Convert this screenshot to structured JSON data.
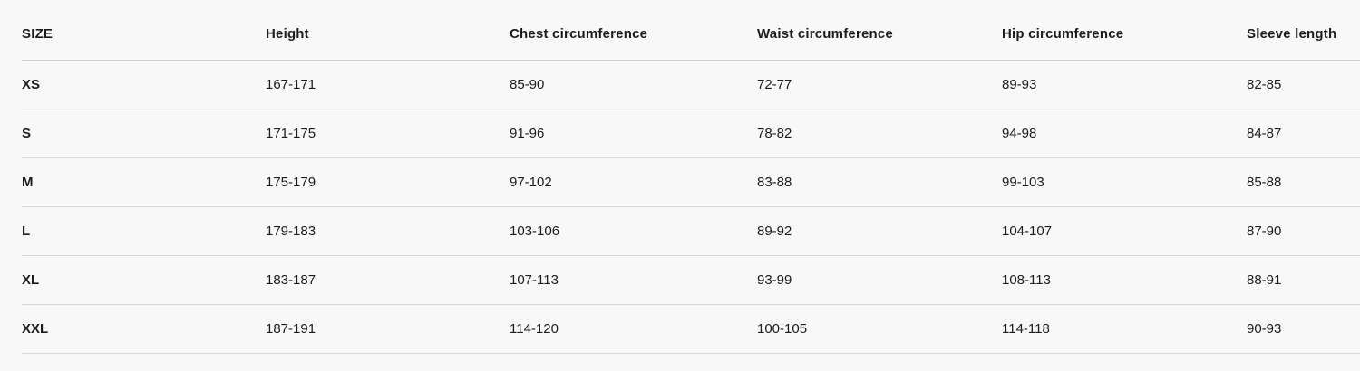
{
  "chart_data": {
    "type": "table",
    "title": "",
    "columns": [
      "SIZE",
      "Height",
      "Chest circumference",
      "Waist circumference",
      "Hip circumference",
      "Sleeve length"
    ],
    "rows": [
      [
        "XS",
        "167-171",
        "85-90",
        "72-77",
        "89-93",
        "82-85"
      ],
      [
        "S",
        "171-175",
        "91-96",
        "78-82",
        "94-98",
        "84-87"
      ],
      [
        "M",
        "175-179",
        "97-102",
        "83-88",
        "99-103",
        "85-88"
      ],
      [
        "L",
        "179-183",
        "103-106",
        "89-92",
        "104-107",
        "87-90"
      ],
      [
        "XL",
        "183-187",
        "107-113",
        "93-99",
        "108-113",
        "88-91"
      ],
      [
        "XXL",
        "187-191",
        "114-120",
        "100-105",
        "114-118",
        "90-93"
      ]
    ]
  },
  "colors": {
    "background": "#f8f8f8",
    "divider": "#d6d6d6",
    "divider_header": "#cfcfcf",
    "text": "#1c1c1c"
  }
}
